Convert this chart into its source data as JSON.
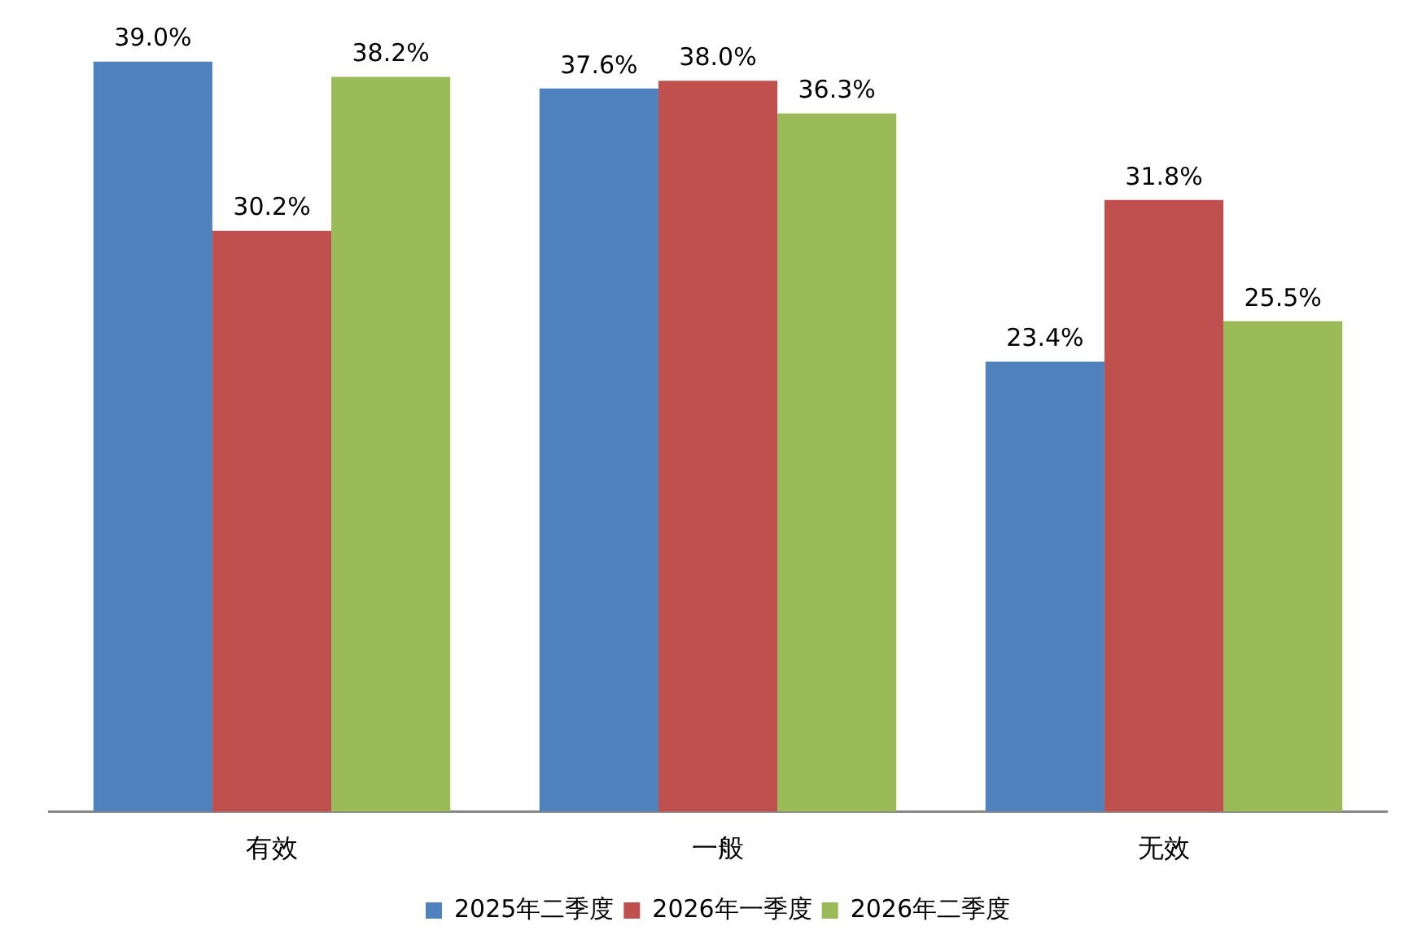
{
  "chart_data": {
    "type": "bar",
    "categories": [
      "有效",
      "一般",
      "无效"
    ],
    "series": [
      {
        "name": "2025年二季度",
        "color": "#4f81bd",
        "values": [
          39.0,
          37.6,
          23.4
        ],
        "value_labels": [
          "39.0%",
          "37.6%",
          "23.4%"
        ]
      },
      {
        "name": "2026年一季度",
        "color": "#c0504d",
        "values": [
          30.2,
          38.0,
          31.8
        ],
        "value_labels": [
          "30.2%",
          "38.0%",
          "31.8%"
        ]
      },
      {
        "name": "2026年二季度",
        "color": "#9bbb59",
        "values": [
          38.2,
          36.3,
          25.5
        ],
        "value_labels": [
          "38.2%",
          "36.3%",
          "25.5%"
        ]
      }
    ],
    "grid": false,
    "legend": "bottom",
    "tick_labels": "x"
  }
}
